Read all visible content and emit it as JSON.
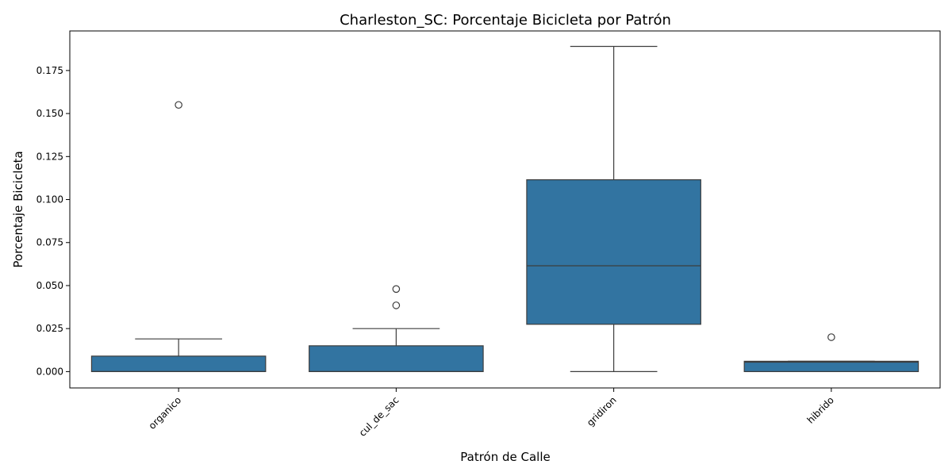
{
  "chart_data": {
    "type": "box",
    "title": "Charleston_SC: Porcentaje Bicicleta por Patrón",
    "xlabel": "Patrón de Calle",
    "ylabel": "Porcentaje Bicicleta",
    "ylim": [
      -0.0095,
      0.198
    ],
    "yticks": [
      0.0,
      0.025,
      0.05,
      0.075,
      0.1,
      0.125,
      0.15,
      0.175
    ],
    "ytick_labels": [
      "0.000",
      "0.025",
      "0.050",
      "0.075",
      "0.100",
      "0.125",
      "0.150",
      "0.175"
    ],
    "grid": false,
    "legend": "none",
    "box_color": "#3274a1",
    "edge_color": "#3d3d3d",
    "categories": [
      "organico",
      "cul_de_sac",
      "gridiron",
      "hibrido"
    ],
    "boxes": [
      {
        "category": "organico",
        "whisker_low": 0.0,
        "q1": 0.0,
        "median": 0.0,
        "q3": 0.009,
        "whisker_high": 0.019,
        "outliers": [
          0.155
        ]
      },
      {
        "category": "cul_de_sac",
        "whisker_low": 0.0,
        "q1": 0.0,
        "median": 0.0,
        "q3": 0.015,
        "whisker_high": 0.025,
        "outliers": [
          0.048,
          0.0385
        ]
      },
      {
        "category": "gridiron",
        "whisker_low": 0.0,
        "q1": 0.0275,
        "median": 0.0615,
        "q3": 0.1115,
        "whisker_high": 0.189,
        "outliers": []
      },
      {
        "category": "hibrido",
        "whisker_low": 0.0,
        "q1": 0.0,
        "median": 0.0055,
        "q3": 0.006,
        "whisker_high": 0.006,
        "outliers": [
          0.02
        ]
      }
    ]
  }
}
